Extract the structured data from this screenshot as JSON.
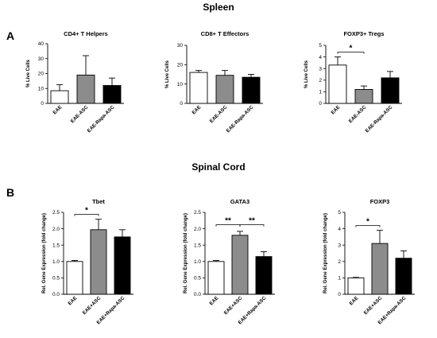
{
  "figure": {
    "top_title": "Spleen",
    "bottom_title": "Spinal Cord",
    "panel_a": "A",
    "panel_b": "B"
  },
  "colors": {
    "white": "#ffffff",
    "gray": "#8c8c8c",
    "black": "#000000",
    "line": "#000000"
  },
  "chart_data": [
    {
      "type": "bar",
      "title": "CD4+ T Helpers",
      "ylabel": "% Live Cells",
      "categories": [
        "EAE",
        "EAE-ASC",
        "EAE-Rapa-ASC"
      ],
      "values": [
        8.5,
        19,
        12
      ],
      "errors": [
        4,
        13,
        5
      ],
      "bar_colors": [
        "white",
        "gray",
        "black"
      ],
      "ylim": [
        0,
        40
      ],
      "yticks": [
        "0",
        "10",
        "20",
        "30",
        "40"
      ],
      "significance": []
    },
    {
      "type": "bar",
      "title": "CD8+ T Effectors",
      "ylabel": "% Live Cells",
      "categories": [
        "EAE",
        "EAE-ASC",
        "EAE-Rapa-ASC"
      ],
      "values": [
        16,
        14.5,
        13.5
      ],
      "errors": [
        1,
        2.5,
        1.5
      ],
      "bar_colors": [
        "white",
        "gray",
        "black"
      ],
      "ylim": [
        0,
        30
      ],
      "yticks": [
        "0",
        "10",
        "20",
        "30"
      ],
      "significance": []
    },
    {
      "type": "bar",
      "title": "FOXP3+ Tregs",
      "ylabel": "% Live Cells",
      "categories": [
        "EAE",
        "EAE-ASC",
        "EAE-Rapa-ASC"
      ],
      "values": [
        3.3,
        1.2,
        2.2
      ],
      "errors": [
        0.7,
        0.3,
        0.55
      ],
      "bar_colors": [
        "white",
        "gray",
        "black"
      ],
      "ylim": [
        0,
        5
      ],
      "yticks": [
        "0",
        "1",
        "2",
        "3",
        "4",
        "5"
      ],
      "significance": [
        {
          "from": 0,
          "to": 1,
          "label": "*"
        }
      ]
    },
    {
      "type": "bar",
      "title": "Tbet",
      "ylabel": "Rel. Gene Expression (fold change)",
      "categories": [
        "EAE",
        "EAE+ASC",
        "EAE+Rapa-ASC"
      ],
      "values": [
        1.0,
        1.97,
        1.75
      ],
      "errors": [
        0.03,
        0.32,
        0.22
      ],
      "bar_colors": [
        "white",
        "gray",
        "black"
      ],
      "ylim": [
        0,
        2.5
      ],
      "yticks": [
        "0.0",
        "0.5",
        "1.0",
        "1.5",
        "2.0",
        "2.5"
      ],
      "significance": [
        {
          "from": 0,
          "to": 1,
          "label": "*"
        }
      ]
    },
    {
      "type": "bar",
      "title": "GATA3",
      "ylabel": "Rel. Gene Expression (fold change)",
      "categories": [
        "EAE",
        "EAE+ASC",
        "EAE+Rapa-ASC"
      ],
      "values": [
        1.0,
        1.8,
        1.15
      ],
      "errors": [
        0.03,
        0.12,
        0.15
      ],
      "bar_colors": [
        "white",
        "gray",
        "black"
      ],
      "ylim": [
        0,
        2.5
      ],
      "yticks": [
        "0.0",
        "0.5",
        "1.0",
        "1.5",
        "2.0",
        "2.5"
      ],
      "significance": [
        {
          "from": 0,
          "to": 1,
          "label": "**"
        },
        {
          "from": 1,
          "to": 2,
          "label": "**"
        }
      ]
    },
    {
      "type": "bar",
      "title": "FOXP3",
      "ylabel": "Rel. Gene Expression (fold change)",
      "categories": [
        "EAE",
        "EAE+ASC",
        "EAE+Rapa-ASC"
      ],
      "values": [
        1.0,
        3.1,
        2.2
      ],
      "errors": [
        0.03,
        0.8,
        0.45
      ],
      "bar_colors": [
        "white",
        "gray",
        "black"
      ],
      "ylim": [
        0,
        5
      ],
      "yticks": [
        "0",
        "1",
        "2",
        "3",
        "4",
        "5"
      ],
      "significance": [
        {
          "from": 0,
          "to": 1,
          "label": "*"
        }
      ]
    }
  ]
}
